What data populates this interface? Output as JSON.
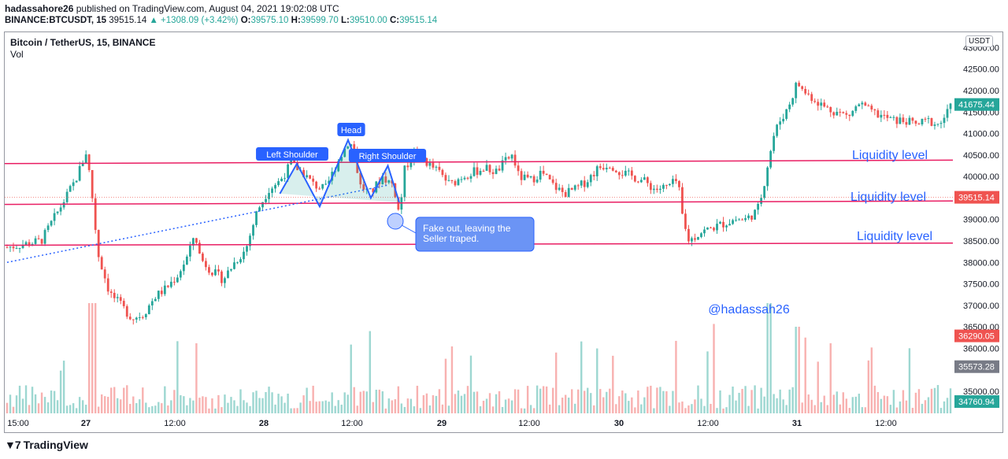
{
  "header": {
    "publisher": "hadassahore26",
    "published_text": " published on TradingView.com, August 04, 2021 19:02:08 UTC",
    "symbol": "BINANCE:BTCUSDT, 15",
    "last": "39515.14",
    "change": "▲ +1308.09 (+3.42%)",
    "o_label": "O:",
    "o_val": "39575.10",
    "h_label": "H:",
    "h_val": "39599.70",
    "l_label": "L:",
    "l_val": "39510.00",
    "c_label": "C:",
    "c_val": "39515.14"
  },
  "legend": {
    "title": "Bitcoin / TetherUS, 15, BINANCE",
    "vol": "Vol"
  },
  "currency_button": "USDT",
  "brand": "TradingView",
  "chart_data": {
    "type": "candlestick",
    "y_range": [
      34500,
      43500
    ],
    "y_ticks": [
      "43000.00",
      "42500.00",
      "42000.00",
      "41500.00",
      "41000.00",
      "40500.00",
      "40000.00",
      "39000.00",
      "38500.00",
      "38000.00",
      "37500.00",
      "37000.00",
      "36500.00",
      "36000.00",
      "35000.00"
    ],
    "x_ticks": [
      {
        "label": "15:00",
        "bold": false
      },
      {
        "label": "27",
        "bold": true
      },
      {
        "label": "12:00",
        "bold": false
      },
      {
        "label": "28",
        "bold": true
      },
      {
        "label": "12:00",
        "bold": false
      },
      {
        "label": "29",
        "bold": true
      },
      {
        "label": "12:00",
        "bold": false
      },
      {
        "label": "30",
        "bold": true
      },
      {
        "label": "12:00",
        "bold": false
      },
      {
        "label": "31",
        "bold": true
      },
      {
        "label": "12:00",
        "bold": false
      }
    ],
    "price_path": [
      [
        0,
        38350
      ],
      [
        6,
        38500
      ],
      [
        9,
        39200
      ],
      [
        12,
        39900
      ],
      [
        14,
        40600
      ],
      [
        15,
        39500
      ],
      [
        16,
        38200
      ],
      [
        18,
        37300
      ],
      [
        20,
        37000
      ],
      [
        22,
        36700
      ],
      [
        24,
        36800
      ],
      [
        26,
        37200
      ],
      [
        28,
        37400
      ],
      [
        30,
        37700
      ],
      [
        32,
        38200
      ],
      [
        33,
        38700
      ],
      [
        34,
        38100
      ],
      [
        36,
        37800
      ],
      [
        38,
        37600
      ],
      [
        40,
        38000
      ],
      [
        42,
        38300
      ],
      [
        44,
        39200
      ],
      [
        46,
        39700
      ],
      [
        48,
        39900
      ],
      [
        50,
        40300
      ],
      [
        52,
        40100
      ],
      [
        54,
        39800
      ],
      [
        56,
        39700
      ],
      [
        58,
        40300
      ],
      [
        60,
        40800
      ],
      [
        61,
        40700
      ],
      [
        62,
        39800
      ],
      [
        64,
        39600
      ],
      [
        66,
        40000
      ],
      [
        68,
        39800
      ],
      [
        69,
        39100
      ],
      [
        70,
        40200
      ],
      [
        72,
        40600
      ],
      [
        74,
        40300
      ],
      [
        76,
        40100
      ],
      [
        78,
        39800
      ],
      [
        80,
        40000
      ],
      [
        82,
        40100
      ],
      [
        84,
        40200
      ],
      [
        86,
        40100
      ],
      [
        88,
        40400
      ],
      [
        89,
        40500
      ],
      [
        90,
        40000
      ],
      [
        92,
        39900
      ],
      [
        94,
        40100
      ],
      [
        96,
        39800
      ],
      [
        98,
        39600
      ],
      [
        100,
        39700
      ],
      [
        102,
        39900
      ],
      [
        104,
        40200
      ],
      [
        106,
        40300
      ],
      [
        108,
        40100
      ],
      [
        110,
        40000
      ],
      [
        112,
        39900
      ],
      [
        114,
        39700
      ],
      [
        116,
        39750
      ],
      [
        118,
        39900
      ],
      [
        119,
        38900
      ],
      [
        120,
        38500
      ],
      [
        122,
        38700
      ],
      [
        124,
        38800
      ],
      [
        126,
        38900
      ],
      [
        128,
        39000
      ],
      [
        130,
        39000
      ],
      [
        132,
        39200
      ],
      [
        133,
        39700
      ],
      [
        134,
        40400
      ],
      [
        135,
        41000
      ],
      [
        136,
        41300
      ],
      [
        137,
        41500
      ],
      [
        138,
        41800
      ],
      [
        139,
        42200
      ],
      [
        140,
        42000
      ],
      [
        142,
        41800
      ],
      [
        144,
        41600
      ],
      [
        146,
        41500
      ],
      [
        148,
        41400
      ],
      [
        150,
        41700
      ],
      [
        152,
        41500
      ],
      [
        154,
        41400
      ],
      [
        156,
        41300
      ],
      [
        158,
        41300
      ],
      [
        160,
        41200
      ],
      [
        162,
        41300
      ],
      [
        164,
        41200
      ],
      [
        165,
        41400
      ],
      [
        166,
        41600
      ]
    ],
    "right_labels": [
      {
        "value": 41675.44,
        "text": "41675.44",
        "color": "#26a69a"
      },
      {
        "value": 39515.14,
        "text": "39515.14",
        "color": "#ef5350"
      },
      {
        "value": 36290.05,
        "text": "36290.05",
        "color": "#ef5350"
      },
      {
        "value": 35573.28,
        "text": "35573.28",
        "color": "#787b86"
      },
      {
        "value": 34760.94,
        "text": "34760.94",
        "color": "#26a69a"
      }
    ],
    "horizontal_levels": [
      {
        "y_start": 40300,
        "y_end": 40380,
        "label": "Liquidity level"
      },
      {
        "y_start": 39350,
        "y_end": 39430,
        "label": "Liquidity level"
      },
      {
        "y_start": 38400,
        "y_end": 38450,
        "label": "Liquidity level"
      }
    ],
    "current_price": 39515.14,
    "pattern": {
      "left_shoulder": "Left Shoulder",
      "head": "Head",
      "right_shoulder": "Right Shoulder"
    },
    "callout": "Fake out, leaving the\nSeller traped.",
    "watermark": "@hadassah26"
  }
}
